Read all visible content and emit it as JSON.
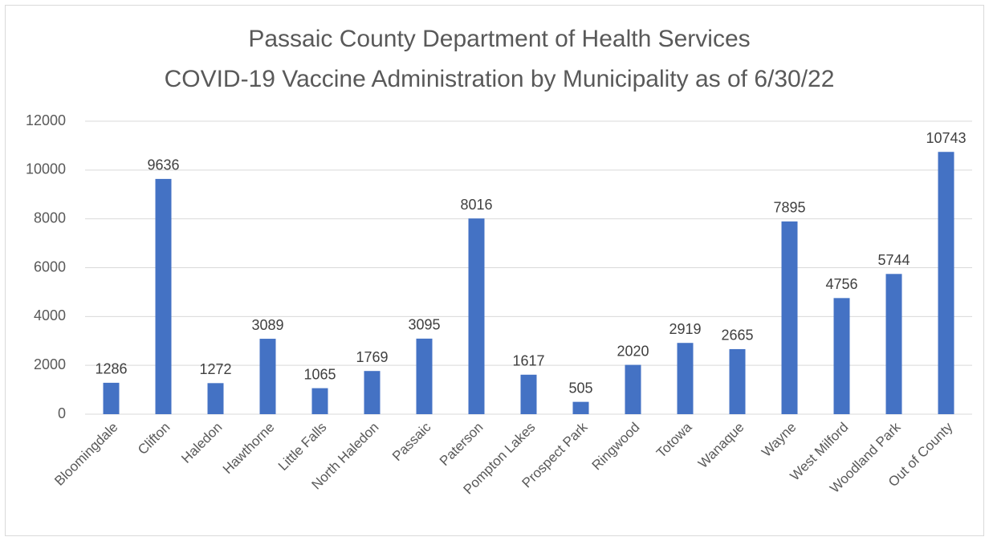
{
  "chart_data": {
    "type": "bar",
    "title": "Passaic County Department of Health Services",
    "subtitle": "COVID-19 Vaccine Administration by Municipality as of 6/30/22",
    "categories": [
      "Bloomingdale",
      "Clifton",
      "Haledon",
      "Hawthorne",
      "Little Falls",
      "North Haledon",
      "Passaic",
      "Paterson",
      "Pompton Lakes",
      "Prospect Park",
      "Ringwood",
      "Totowa",
      "Wanaque",
      "Wayne",
      "West Milford",
      "Woodland Park",
      "Out of County"
    ],
    "values": [
      1286,
      9636,
      1272,
      3089,
      1065,
      1769,
      3095,
      8016,
      1617,
      505,
      2020,
      2919,
      2665,
      7895,
      4756,
      5744,
      10743
    ],
    "color": "#4472c4",
    "ylim": [
      0,
      12000
    ],
    "yticks": [
      0,
      2000,
      4000,
      6000,
      8000,
      10000,
      12000
    ],
    "grid": true
  }
}
